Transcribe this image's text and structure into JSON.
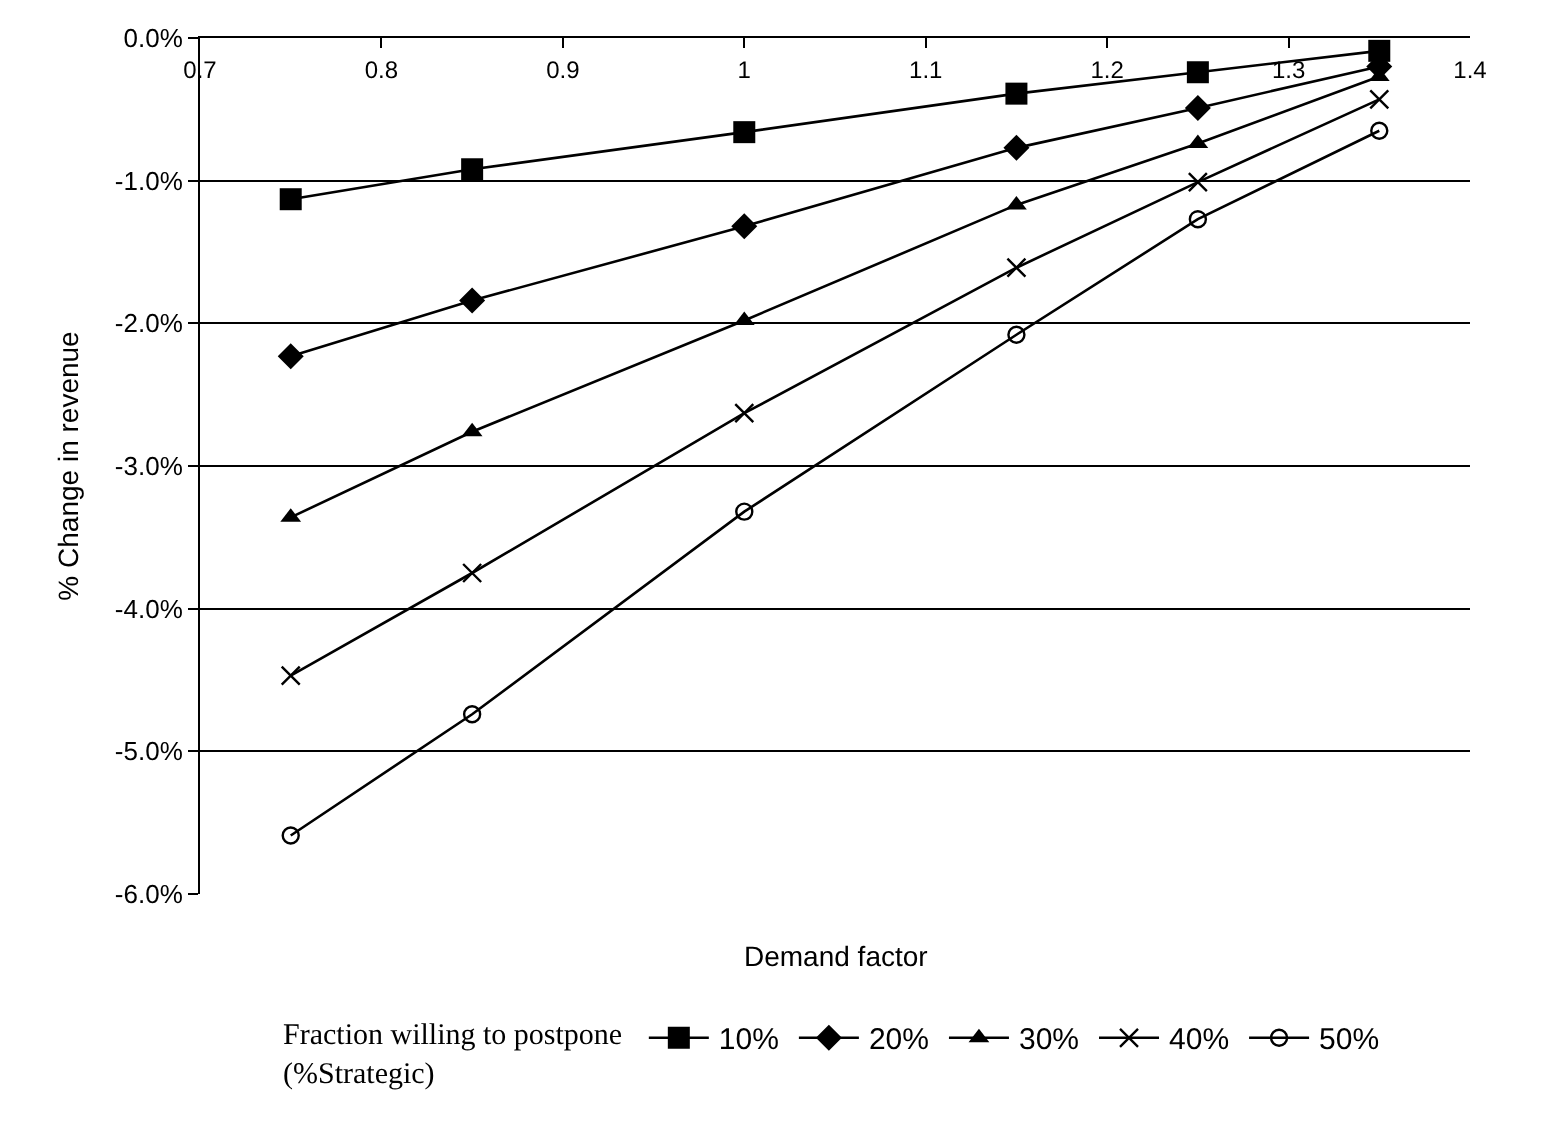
{
  "chart_data": {
    "type": "line",
    "xlabel": "Demand factor",
    "ylabel": "% Change in revenue",
    "legend_title": "Fraction willing to postpone\n(%Strategic)",
    "x": [
      0.75,
      0.85,
      1.0,
      1.15,
      1.25,
      1.35
    ],
    "series": [
      {
        "name": "10%",
        "color": "#000000",
        "marker": "square",
        "values": [
          -1.13,
          -0.92,
          -0.66,
          -0.39,
          -0.24,
          -0.09
        ]
      },
      {
        "name": "20%",
        "color": "#000000",
        "marker": "diamond",
        "values": [
          -2.23,
          -1.84,
          -1.32,
          -0.77,
          -0.49,
          -0.2
        ]
      },
      {
        "name": "30%",
        "color": "#000000",
        "marker": "triangle",
        "values": [
          -3.36,
          -2.76,
          -1.98,
          -1.17,
          -0.74,
          -0.27
        ]
      },
      {
        "name": "40%",
        "color": "#000000",
        "marker": "cross",
        "values": [
          -4.47,
          -3.75,
          -2.63,
          -1.61,
          -1.01,
          -0.43
        ]
      },
      {
        "name": "50%",
        "color": "#000000",
        "marker": "circle",
        "values": [
          -5.59,
          -4.74,
          -3.32,
          -2.08,
          -1.27,
          -0.65
        ]
      }
    ],
    "xlim": [
      0.7,
      1.4
    ],
    "xticks": [
      0.7,
      0.8,
      0.9,
      1,
      1.1,
      1.2,
      1.3,
      1.4
    ],
    "ylim": [
      -6,
      0
    ],
    "yticks": [
      {
        "value": 0,
        "label": "0.0%"
      },
      {
        "value": -1,
        "label": "-1.0%"
      },
      {
        "value": -2,
        "label": "-2.0%"
      },
      {
        "value": -3,
        "label": "-3.0%"
      },
      {
        "value": -4,
        "label": "-4.0%"
      },
      {
        "value": -5,
        "label": "-5.0%"
      },
      {
        "value": -6,
        "label": "-6.0%"
      }
    ],
    "grid": "y",
    "legend": "bottom",
    "line_style": "solid"
  }
}
